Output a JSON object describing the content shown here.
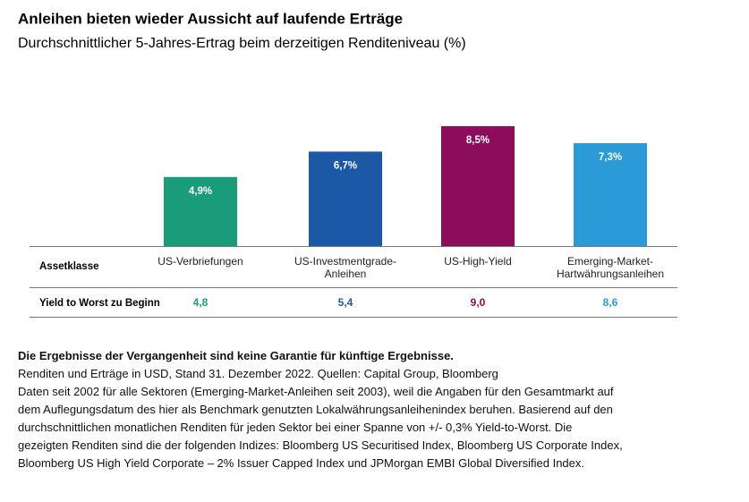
{
  "chart_data": {
    "type": "bar",
    "title": "Anleihen bieten wieder Aussicht auf laufende Erträge",
    "subtitle": "Durchschnittlicher 5-Jahres-Ertrag beim derzeitigen Renditeniveau (%)",
    "categories": [
      "US-Verbriefungen",
      "US-Investmentgrade-\nAnleihen",
      "US-High-Yield",
      "Emerging-Market-\nHartwährungsanleihen"
    ],
    "values": [
      4.9,
      6.7,
      8.5,
      7.3
    ],
    "value_labels": [
      "4,9%",
      "6,7%",
      "8,5%",
      "7,3%"
    ],
    "colors": [
      "#1a9c7b",
      "#1d58a6",
      "#8b0d5c",
      "#2b9bd8"
    ],
    "ylim": [
      0,
      10
    ],
    "row_header": "Assetklasse",
    "yield_row": {
      "label": "Yield to Worst zu Beginn",
      "values": [
        "4,8",
        "5,4",
        "9,0",
        "8,6"
      ]
    }
  },
  "notes": {
    "heading": "Die Ergebnisse der Vergangenheit sind keine Garantie für künftige Ergebnisse.",
    "lines": [
      "Renditen und Erträge in USD, Stand 31. Dezember 2022. Quellen: Capital Group, Bloomberg",
      "Daten seit 2002 für alle Sektoren (Emerging-Market-Anleihen seit 2003), weil die Angaben für den Gesamtmarkt auf",
      "dem Auflegungsdatum des hier als Benchmark genutzten Lokalwährungsanleihenindex beruhen. Basierend auf den",
      "durchschnittlichen monatlichen Renditen für jeden Sektor bei einer Spanne von +/- 0,3% Yield-to-Worst. Die",
      "gezeigten Renditen sind die der folgenden Indizes: Bloomberg US Securitised Index, Bloomberg US Corporate Index,",
      "Bloomberg US High Yield Corporate – 2% Issuer Capped Index und JPMorgan EMBI Global Diversified Index."
    ]
  }
}
